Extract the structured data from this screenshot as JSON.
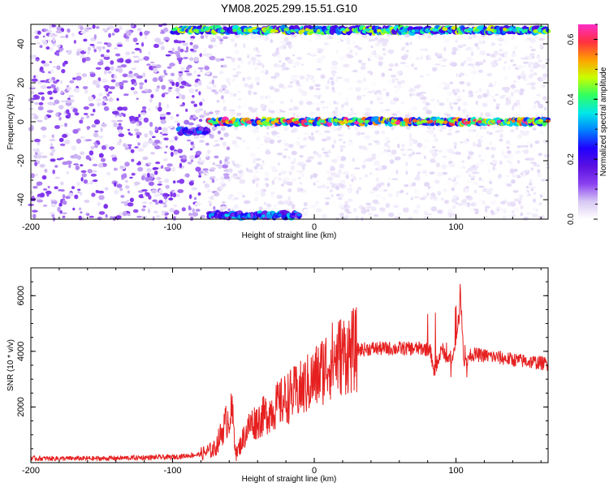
{
  "figure": {
    "title": "YM08.2025.299.15.51.G10"
  },
  "chart_data": [
    {
      "type": "heatmap",
      "name": "spectrogram",
      "xlabel": "Height of straight line (km)",
      "ylabel": "Frequency (Hz)",
      "xlim": [
        -200,
        165
      ],
      "ylim": [
        -50,
        50
      ],
      "xticks": [
        "-200",
        "-100",
        "0",
        "100"
      ],
      "yticks": [
        "-40",
        "-20",
        "0",
        "20",
        "40"
      ],
      "colorbar": {
        "label": "Normalized spectral amplitude",
        "range": [
          0,
          0.65
        ],
        "ticks": [
          "0.0",
          "0.2",
          "0.4",
          "0.6"
        ],
        "colormap": [
          "#ffffff",
          "#d8c8f4",
          "#8a40f0",
          "#5a10e0",
          "#2000ff",
          "#0080ff",
          "#00e8e8",
          "#30ff60",
          "#c8ff00",
          "#ffa000",
          "#ff3040",
          "#ff2cc8"
        ]
      },
      "features": [
        {
          "label": "carrier line",
          "x_from": -75,
          "x_to": 165,
          "freq_hz": 0,
          "peak_amplitude": 0.65
        },
        {
          "label": "early segment",
          "x_from": -95,
          "x_to": -75,
          "freq_hz": -5,
          "peak_amplitude": 0.3
        },
        {
          "label": "upper band edge",
          "x_from": -100,
          "x_to": 165,
          "freq_hz": 47,
          "peak_amplitude": 0.5
        },
        {
          "label": "lower band edge",
          "x_from": -75,
          "x_to": -10,
          "freq_hz": -48,
          "peak_amplitude": 0.35
        }
      ],
      "noise": {
        "x_from": -200,
        "x_to": -80,
        "amplitude": 0.1
      }
    },
    {
      "type": "line",
      "name": "snr",
      "xlabel": "Height of straight line (km)",
      "ylabel": "SNR (10 * v/v)",
      "xlim": [
        -200,
        165
      ],
      "ylim": [
        0,
        7000
      ],
      "xticks": [
        "-200",
        "-100",
        "0",
        "100"
      ],
      "yticks": [
        "2000",
        "4000",
        "6000"
      ],
      "color": "#e62020",
      "series_envelope": {
        "x": [
          -200,
          -150,
          -100,
          -80,
          -70,
          -62,
          -58,
          -55,
          -50,
          -45,
          -40,
          -30,
          -20,
          -10,
          0,
          10,
          20,
          30,
          40,
          50,
          60,
          70,
          78,
          82,
          85,
          90,
          95,
          100,
          103,
          106,
          110,
          120,
          140,
          165
        ],
        "y": [
          150,
          150,
          200,
          300,
          500,
          1500,
          1800,
          300,
          900,
          1400,
          1500,
          1900,
          2300,
          2600,
          3000,
          3600,
          3900,
          4050,
          4100,
          4100,
          4100,
          4100,
          4100,
          4000,
          3200,
          4100,
          3700,
          4100,
          6200,
          3500,
          3900,
          3850,
          3700,
          3550
        ]
      }
    }
  ]
}
